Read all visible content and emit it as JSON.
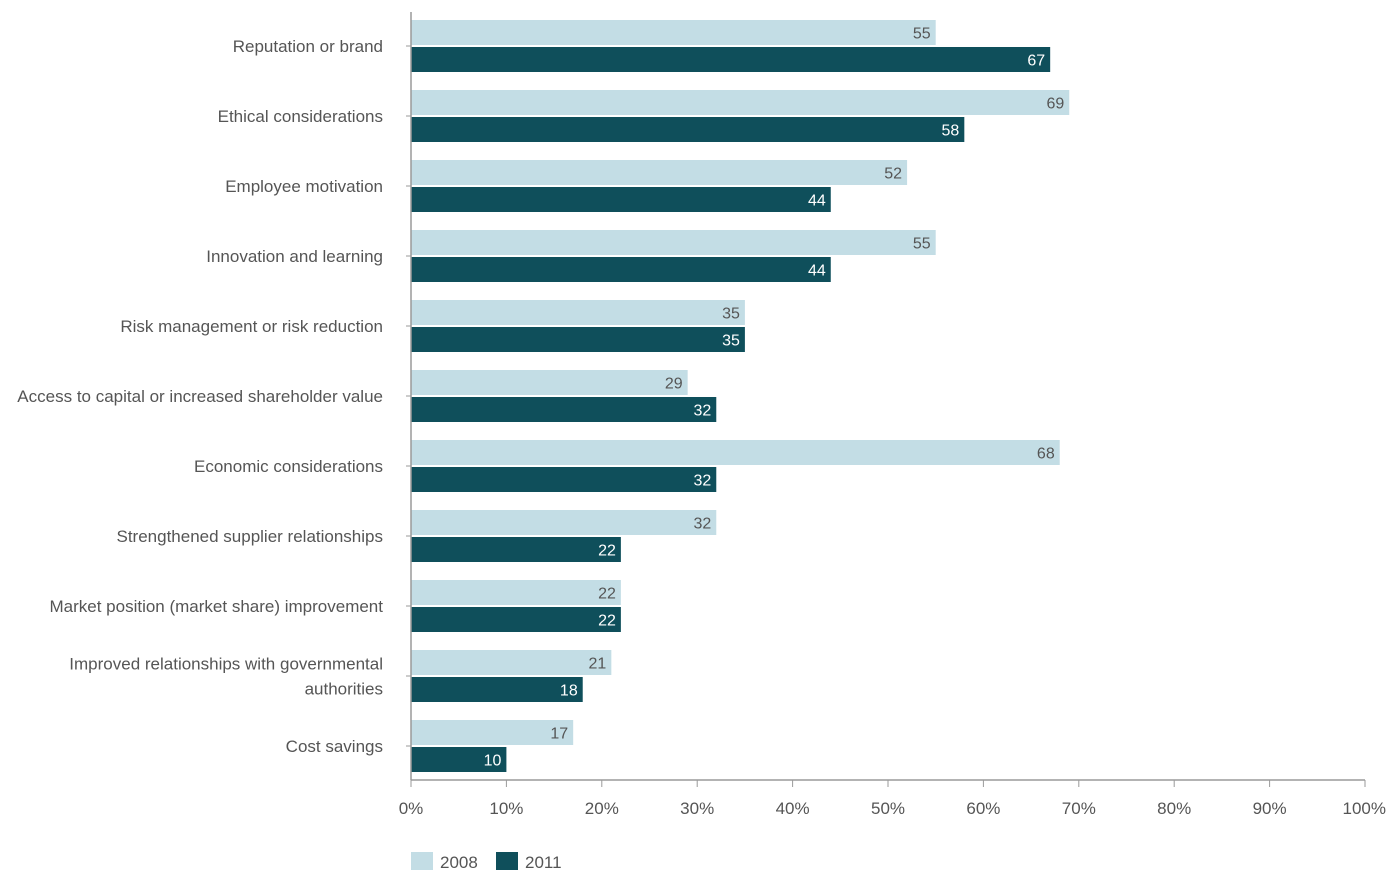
{
  "chart_data": {
    "type": "bar",
    "orientation": "horizontal",
    "categories": [
      [
        "Reputation or brand"
      ],
      [
        "Ethical considerations"
      ],
      [
        "Employee motivation"
      ],
      [
        "Innovation and learning"
      ],
      [
        "Risk management or risk reduction"
      ],
      [
        "Access to capital or increased shareholder value"
      ],
      [
        "Economic considerations"
      ],
      [
        "Strengthened supplier relationships"
      ],
      [
        "Market position (market share) improvement"
      ],
      [
        "Improved relationships with governmental",
        "authorities"
      ],
      [
        "Cost savings"
      ]
    ],
    "series": [
      {
        "name": "2008",
        "color": "#c3dde5",
        "label_color": "#555555",
        "values": [
          55,
          69,
          52,
          55,
          35,
          29,
          68,
          32,
          22,
          21,
          17
        ]
      },
      {
        "name": "2011",
        "color": "#0f4f5b",
        "label_color": "#ffffff",
        "values": [
          67,
          58,
          44,
          44,
          35,
          32,
          32,
          22,
          22,
          18,
          10
        ]
      }
    ],
    "x_ticks": [
      "0%",
      "10%",
      "20%",
      "30%",
      "40%",
      "50%",
      "60%",
      "70%",
      "80%",
      "90%",
      "100%"
    ],
    "xlim": [
      0,
      100
    ],
    "xlabel": "",
    "ylabel": "",
    "title": "",
    "grid": false,
    "legend_position": "bottom-left",
    "axis_color": "#9a9a9a"
  }
}
